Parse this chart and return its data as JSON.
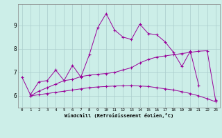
{
  "title": "",
  "xlabel": "Windchill (Refroidissement éolien,°C)",
  "ylabel": "",
  "bg_color": "#cceee8",
  "grid_color": "#aacccc",
  "line_color": "#990099",
  "xlim": [
    -0.5,
    23.5
  ],
  "ylim": [
    5.5,
    9.9
  ],
  "xticks": [
    0,
    1,
    2,
    3,
    4,
    5,
    6,
    7,
    8,
    9,
    10,
    11,
    12,
    13,
    14,
    15,
    16,
    17,
    18,
    19,
    20,
    21,
    22,
    23
  ],
  "yticks": [
    6,
    7,
    8,
    9
  ],
  "line1_x": [
    0,
    1,
    2,
    3,
    4,
    5,
    6,
    7,
    8,
    9,
    10,
    11,
    12,
    13,
    14,
    15,
    16,
    17,
    18,
    19,
    20,
    21
  ],
  "line1_y": [
    6.8,
    6.05,
    6.6,
    6.65,
    7.1,
    6.65,
    7.3,
    6.8,
    7.75,
    8.9,
    9.5,
    8.8,
    8.5,
    8.4,
    9.05,
    8.65,
    8.6,
    8.3,
    7.85,
    7.25,
    7.9,
    6.45
  ],
  "line2_x": [
    1,
    2,
    3,
    4,
    5,
    6,
    7,
    8,
    9,
    10,
    11,
    12,
    13,
    14,
    15,
    16,
    17,
    18,
    19,
    20,
    21,
    22,
    23
  ],
  "line2_y": [
    6.0,
    6.05,
    6.1,
    6.15,
    6.2,
    6.25,
    6.3,
    6.35,
    6.38,
    6.4,
    6.42,
    6.43,
    6.44,
    6.42,
    6.4,
    6.35,
    6.3,
    6.25,
    6.18,
    6.1,
    6.0,
    5.88,
    5.75
  ],
  "line3_x": [
    1,
    2,
    3,
    4,
    5,
    6,
    7,
    8,
    9,
    10,
    11,
    12,
    13,
    14,
    15,
    16,
    17,
    18,
    19,
    20,
    21,
    22,
    23
  ],
  "line3_y": [
    6.0,
    6.2,
    6.35,
    6.5,
    6.65,
    6.7,
    6.82,
    6.88,
    6.92,
    6.95,
    7.0,
    7.1,
    7.2,
    7.4,
    7.55,
    7.65,
    7.7,
    7.75,
    7.8,
    7.85,
    7.9,
    7.92,
    5.82
  ]
}
